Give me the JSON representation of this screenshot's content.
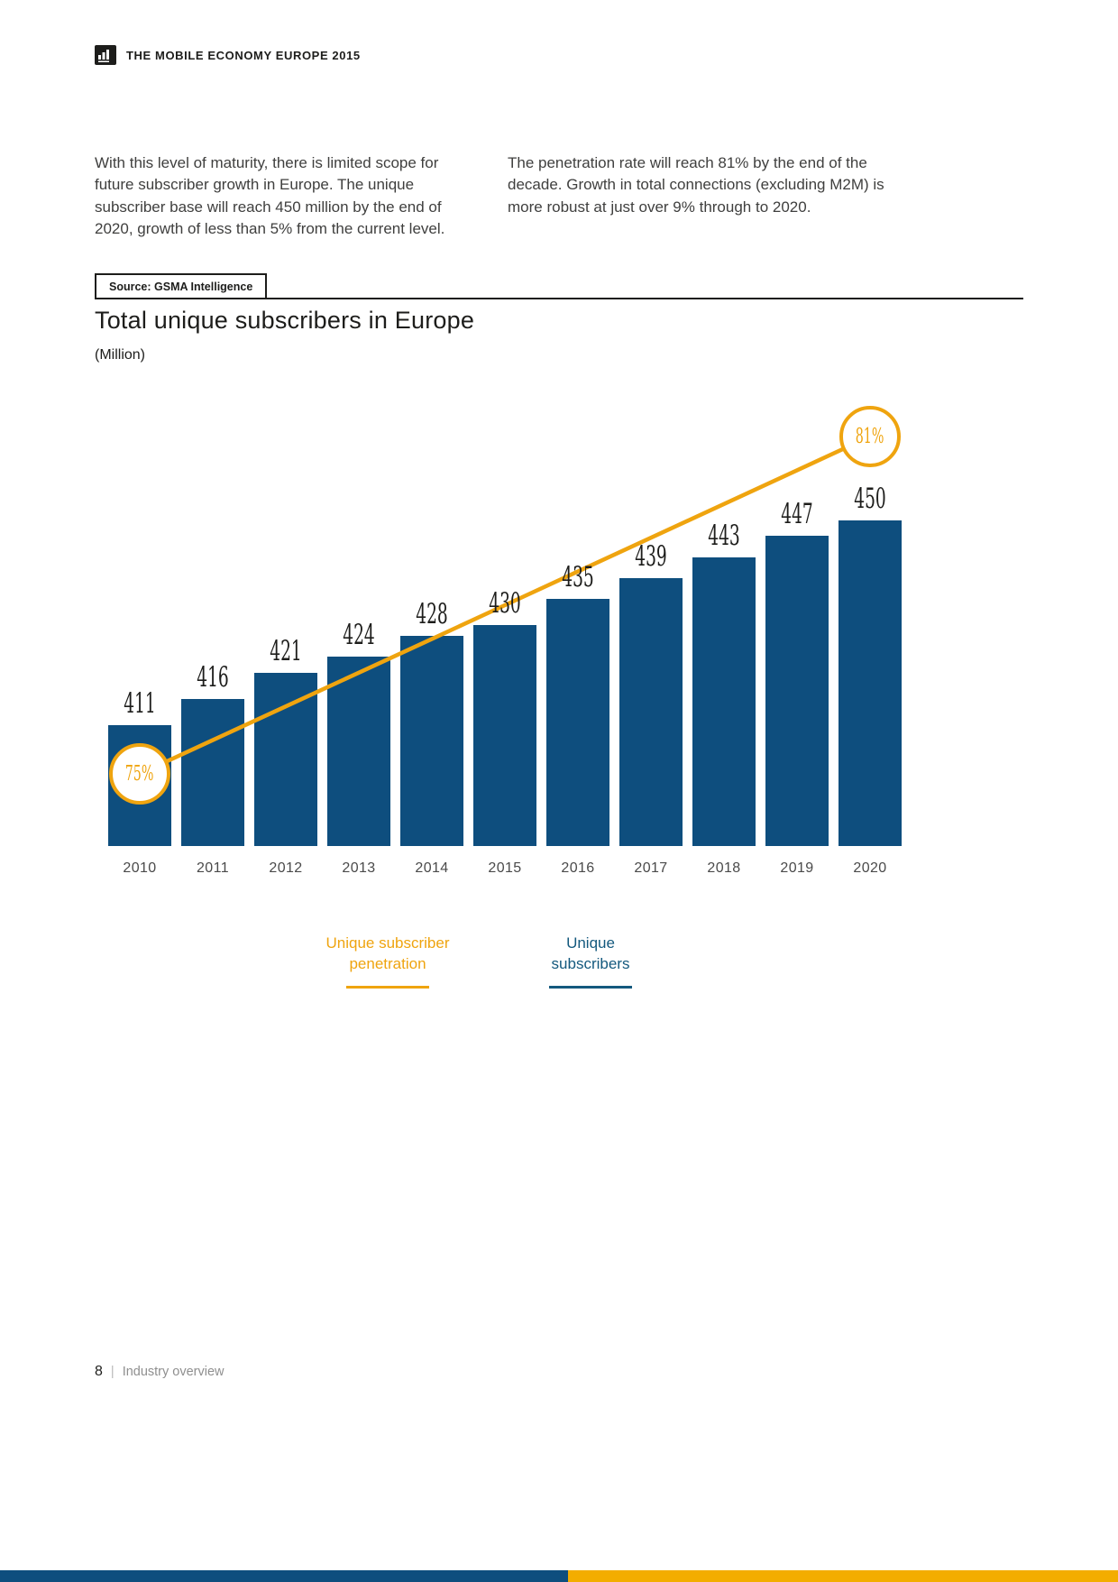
{
  "header": {
    "report_title": "THE MOBILE ECONOMY EUROPE 2015"
  },
  "intro": {
    "left_paragraph": "With this level of maturity, there is limited scope for future subscriber growth in Europe. The unique subscriber base will reach 450 million by the end of 2020, growth of less than 5% from the current level.",
    "right_paragraph": "The penetration rate will reach 81% by the end of the decade. Growth in total connections (excluding M2M) is more robust at just over 9% through to 2020."
  },
  "source": {
    "label": "Source: GSMA Intelligence"
  },
  "chart_data": {
    "type": "bar",
    "title": "Total unique subscribers in Europe",
    "subtitle": "(Million)",
    "categories": [
      "2010",
      "2011",
      "2012",
      "2013",
      "2014",
      "2015",
      "2016",
      "2017",
      "2018",
      "2019",
      "2020"
    ],
    "series": [
      {
        "name": "Unique subscribers",
        "type": "bar",
        "color": "#0e4e7e",
        "values": [
          411,
          416,
          421,
          424,
          428,
          430,
          435,
          439,
          443,
          447,
          450
        ]
      },
      {
        "name": "Unique subscriber penetration",
        "type": "line",
        "color": "#efa40f",
        "points": [
          {
            "category": "2010",
            "value": 75,
            "label": "75%"
          },
          {
            "category": "2020",
            "value": 81,
            "label": "81%"
          }
        ]
      }
    ],
    "legend_position": "bottom",
    "y_axis": {
      "visible": false,
      "ylim_hint": [
        388,
        455
      ]
    },
    "grid": false
  },
  "footer": {
    "page_number": "8",
    "section_title": "Industry overview"
  },
  "colors": {
    "bar_blue": "#0e4e7e",
    "accent_orange": "#efa40f",
    "legend_blue": "#14597e",
    "strip_orange": "#f3ad00"
  }
}
